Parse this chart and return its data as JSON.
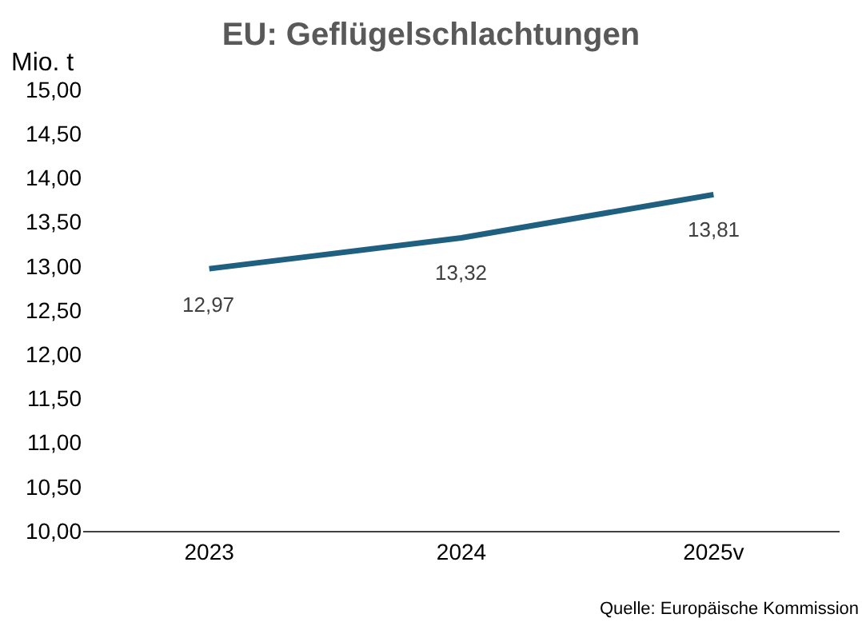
{
  "chart_data": {
    "type": "line",
    "title": "EU: Geflügelschlachtungen",
    "ylabel": "Mio. t",
    "categories": [
      "2023",
      "2024",
      "2025v"
    ],
    "series": [
      {
        "color": "#1f5f7f",
        "values": [
          12.97,
          13.32,
          13.81
        ],
        "value_labels": [
          "12,97",
          "13,32",
          "13,81"
        ]
      }
    ],
    "ylim": [
      10,
      15
    ],
    "yticks": [
      {
        "value": 10,
        "label": "10,00"
      },
      {
        "value": 10.5,
        "label": "10,50"
      },
      {
        "value": 11,
        "label": "11,00"
      },
      {
        "value": 11.5,
        "label": "11,50"
      },
      {
        "value": 12,
        "label": "12,00"
      },
      {
        "value": 12.5,
        "label": "12,50"
      },
      {
        "value": 13,
        "label": "13,00"
      },
      {
        "value": 13.5,
        "label": "13,50"
      },
      {
        "value": 14,
        "label": "14,00"
      },
      {
        "value": 14.5,
        "label": "14,50"
      },
      {
        "value": 15,
        "label": "15,00"
      }
    ],
    "grid": false,
    "marker": "none",
    "line_style": "solid",
    "annotations": [
      "Quelle: Europäische Kommission"
    ]
  }
}
